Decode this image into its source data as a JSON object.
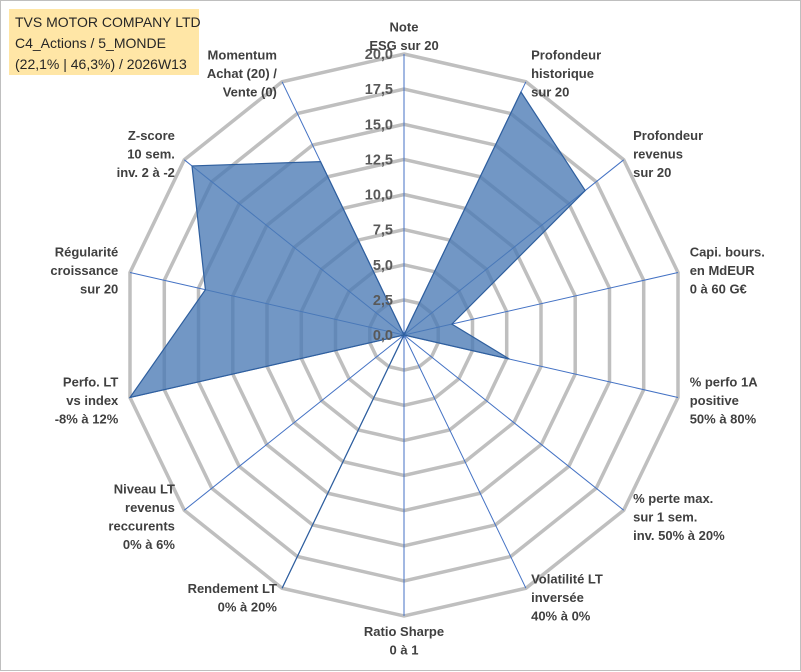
{
  "chart_title": {
    "line1": "TVS MOTOR COMPANY LTD",
    "line2": "C4_Actions / 5_MONDE",
    "line3": "(22,1% | 46,3%) / 2026W13"
  },
  "colors": {
    "title_bg": "#ffe6a6",
    "fill": "#4a7ab5",
    "outline": "#2f5f9e",
    "grid": "#bfbfbf",
    "spoke": "#4472c4"
  },
  "chart_data": {
    "type": "radar",
    "title": "TVS MOTOR COMPANY LTD — C4_Actions / 5_MONDE — (22,1% | 46,3%) / 2026W13",
    "rlim": [
      0,
      20
    ],
    "ticks": [
      "0,0",
      "2,5",
      "5,0",
      "7,5",
      "10,0",
      "12,5",
      "15,0",
      "17,5",
      "20,0"
    ],
    "tick_values": [
      0,
      2.5,
      5,
      7.5,
      10,
      12.5,
      15,
      17.5,
      20
    ],
    "axes": [
      {
        "lines": [
          "Note",
          "ESG sur 20"
        ]
      },
      {
        "lines": [
          "Profondeur",
          "historique",
          "sur 20"
        ]
      },
      {
        "lines": [
          "Profondeur",
          "revenus",
          "sur 20"
        ]
      },
      {
        "lines": [
          "Capi. bours.",
          "en MdEUR",
          "0 à 60 G€"
        ]
      },
      {
        "lines": [
          "% perfo 1A",
          "positive",
          "50% à 80%"
        ]
      },
      {
        "lines": [
          "% perte max.",
          "sur 1 sem.",
          "inv. 50% à 20%"
        ]
      },
      {
        "lines": [
          "Volatilité LT",
          "inversée",
          "40% à 0%"
        ]
      },
      {
        "lines": [
          "Ratio Sharpe",
          "0 à 1"
        ]
      },
      {
        "lines": [
          "Rendement LT",
          "0% à 20%"
        ]
      },
      {
        "lines": [
          "Niveau LT",
          "revenus",
          "reccurents",
          "0% à 6%"
        ]
      },
      {
        "lines": [
          "Perfo. LT",
          "vs index",
          "-8% à 12%"
        ]
      },
      {
        "lines": [
          "Régularité",
          "croissance",
          "sur 20"
        ]
      },
      {
        "lines": [
          "Z-score",
          "10 sem.",
          "inv. 2 à -2"
        ]
      },
      {
        "lines": [
          "Momentum",
          "Achat (20) /",
          "Vente (0)"
        ]
      }
    ],
    "series": [
      {
        "name": "TVS MOTOR COMPANY LTD",
        "values": [
          0,
          19.2,
          16.5,
          3.5,
          7.7,
          0,
          0,
          0,
          20,
          0,
          20,
          14.5,
          19.3,
          13.7
        ]
      }
    ]
  }
}
